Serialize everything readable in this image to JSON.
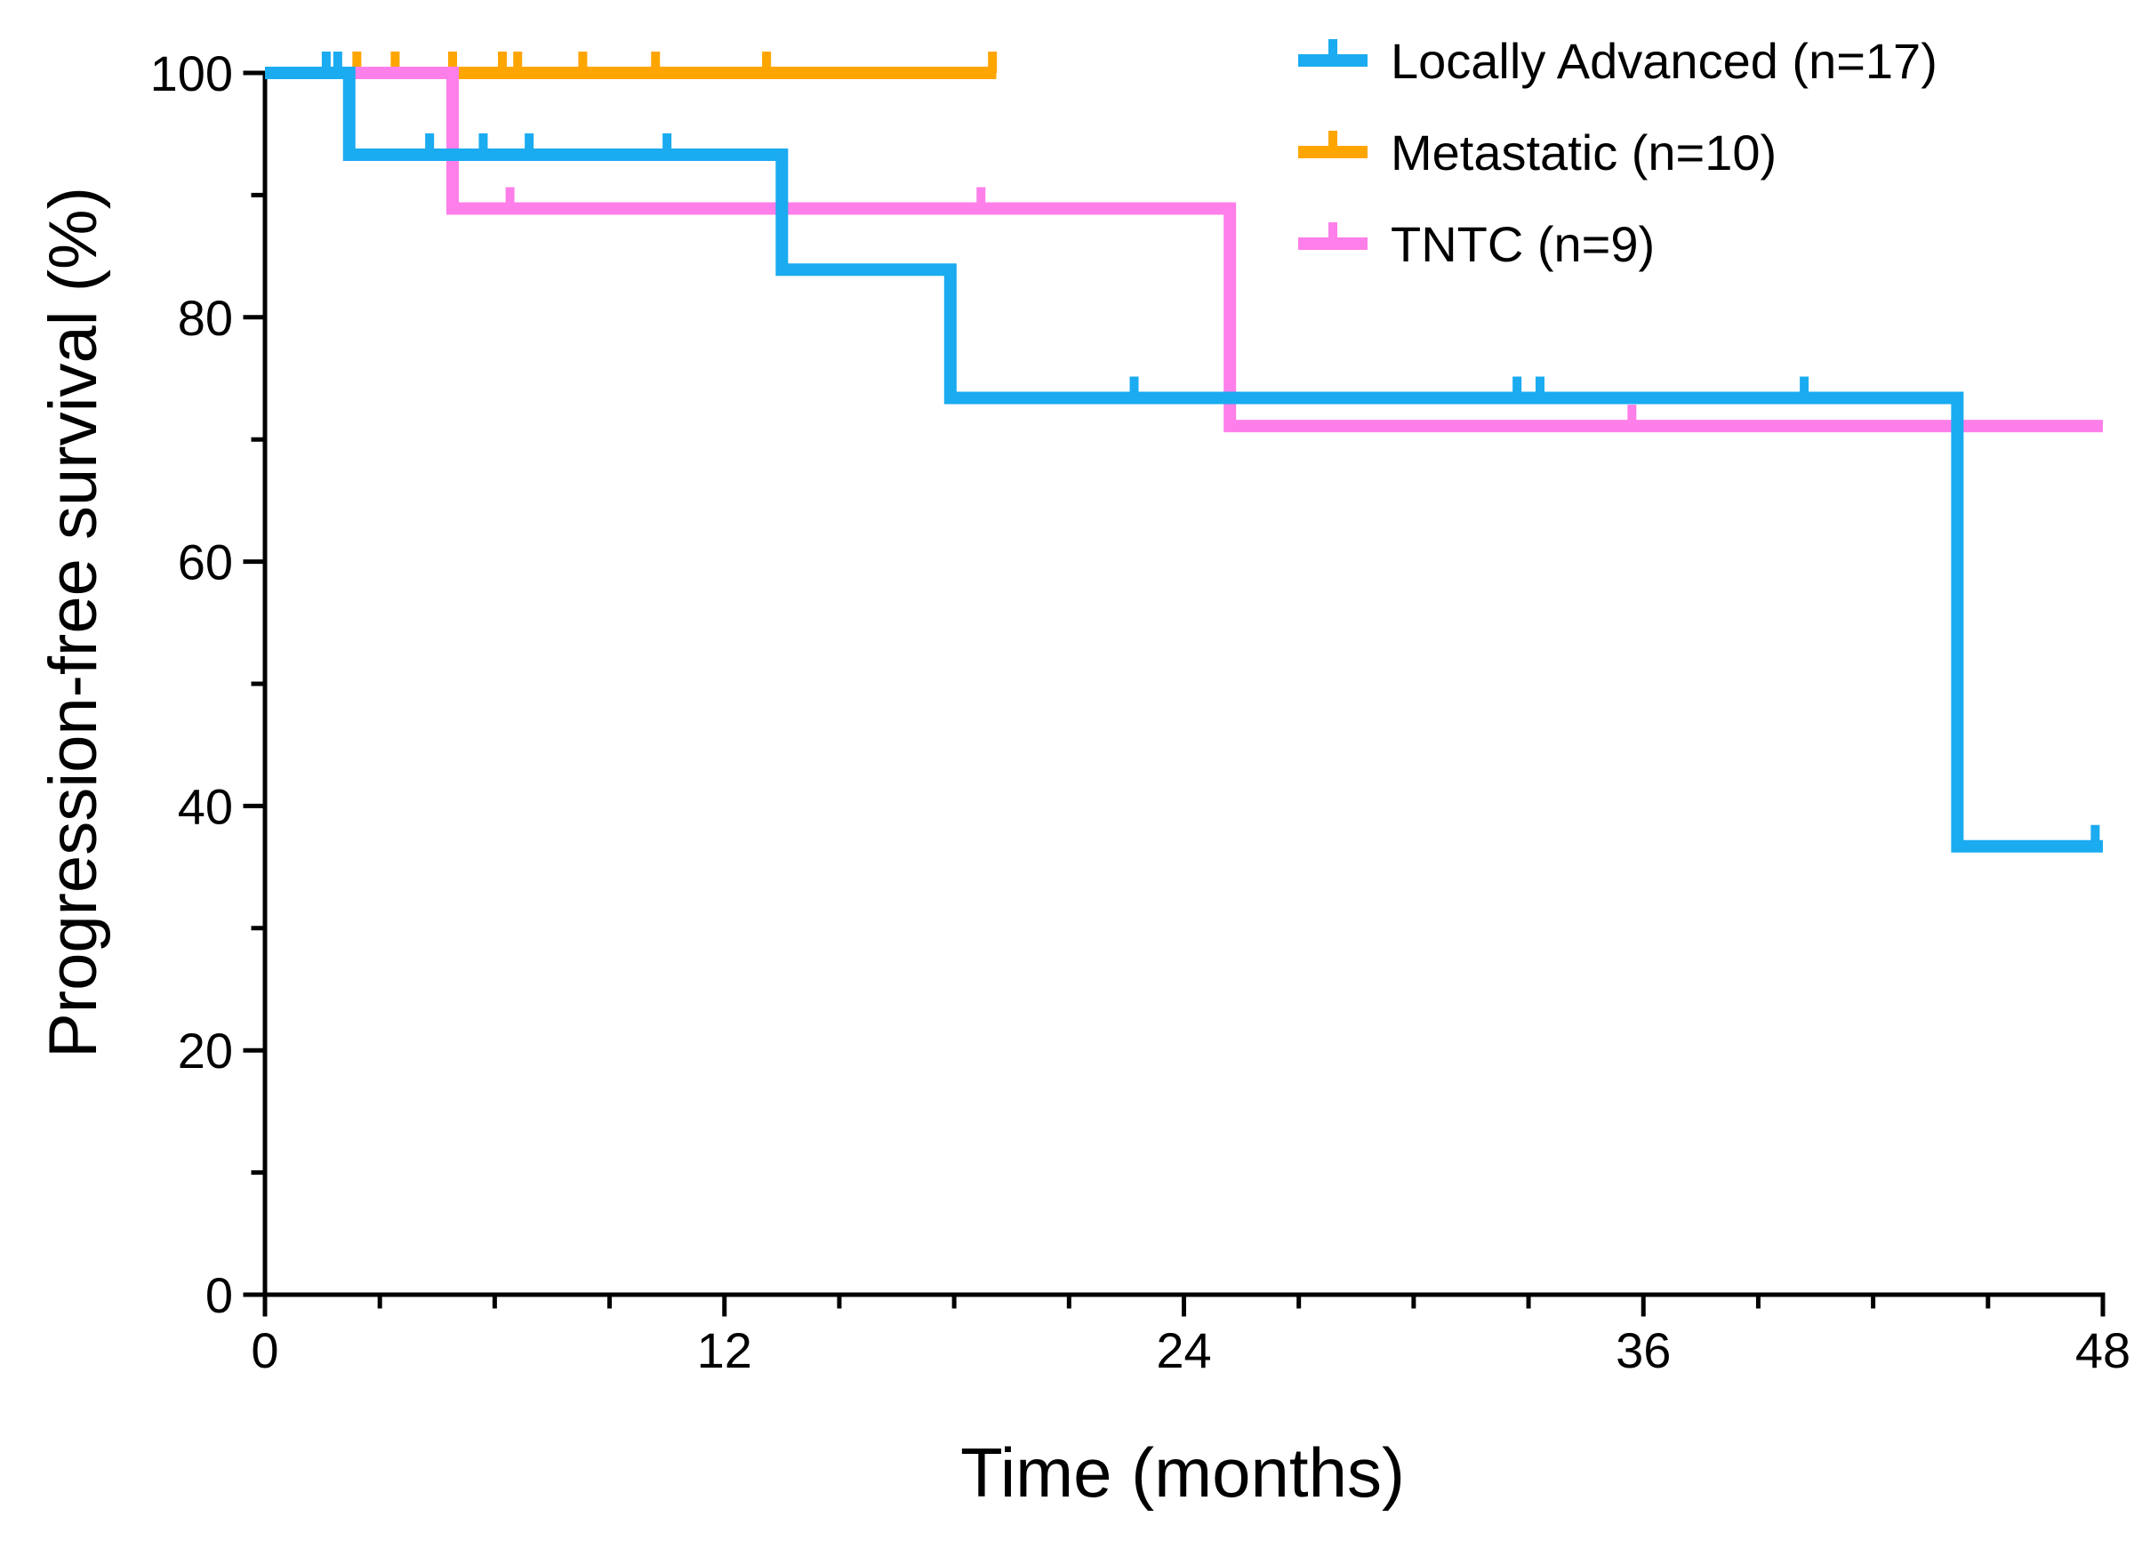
{
  "chart_data": {
    "type": "line",
    "subtype": "kaplan-meier",
    "title": "",
    "xlabel": "Time (months)",
    "ylabel": "Progression-free survival (%)",
    "xlim": [
      0,
      48
    ],
    "ylim": [
      0,
      100
    ],
    "x_ticks": [
      "0",
      "12",
      "24",
      "36",
      "48"
    ],
    "y_ticks": [
      "0",
      "20",
      "40",
      "60",
      "80",
      "100"
    ],
    "x_tick_values": [
      0,
      12,
      24,
      36,
      48
    ],
    "y_tick_values": [
      0,
      20,
      40,
      60,
      80,
      100
    ],
    "x_minor_step": 3,
    "y_minor_step": 10,
    "grid": false,
    "legend_position": "top-right",
    "series": [
      {
        "name": "Locally Advanced (n=17)",
        "color": "#1AABF0",
        "steps": [
          [
            0,
            100
          ],
          [
            2.2,
            93.3
          ],
          [
            13.5,
            83.9
          ],
          [
            17.9,
            73.4
          ],
          [
            44.2,
            36.7
          ]
        ],
        "end_x": 48,
        "censors": [
          [
            1.6,
            100
          ],
          [
            1.9,
            100
          ],
          [
            4.3,
            93.3
          ],
          [
            5.7,
            93.3
          ],
          [
            6.9,
            93.3
          ],
          [
            10.5,
            93.3
          ],
          [
            22.7,
            73.4
          ],
          [
            32.7,
            73.4
          ],
          [
            33.3,
            73.4
          ],
          [
            40.2,
            73.4
          ],
          [
            47.8,
            36.7
          ]
        ]
      },
      {
        "name": "Metastatic (n=10)",
        "color": "#FFA500",
        "steps": [
          [
            0,
            100
          ]
        ],
        "end_x": 19.1,
        "censors": [
          [
            2.4,
            100
          ],
          [
            3.4,
            100
          ],
          [
            4.9,
            100
          ],
          [
            6.2,
            100
          ],
          [
            6.6,
            100
          ],
          [
            8.3,
            100
          ],
          [
            10.2,
            100
          ],
          [
            13.1,
            100
          ],
          [
            19.0,
            100
          ]
        ]
      },
      {
        "name": "TNTC (n=9)",
        "color": "#FF7FEA",
        "steps": [
          [
            0,
            100
          ],
          [
            4.9,
            88.9
          ],
          [
            25.2,
            71.1
          ]
        ],
        "end_x": 48,
        "censors": [
          [
            6.4,
            88.9
          ],
          [
            18.7,
            88.9
          ],
          [
            35.7,
            71.1
          ]
        ]
      }
    ]
  }
}
